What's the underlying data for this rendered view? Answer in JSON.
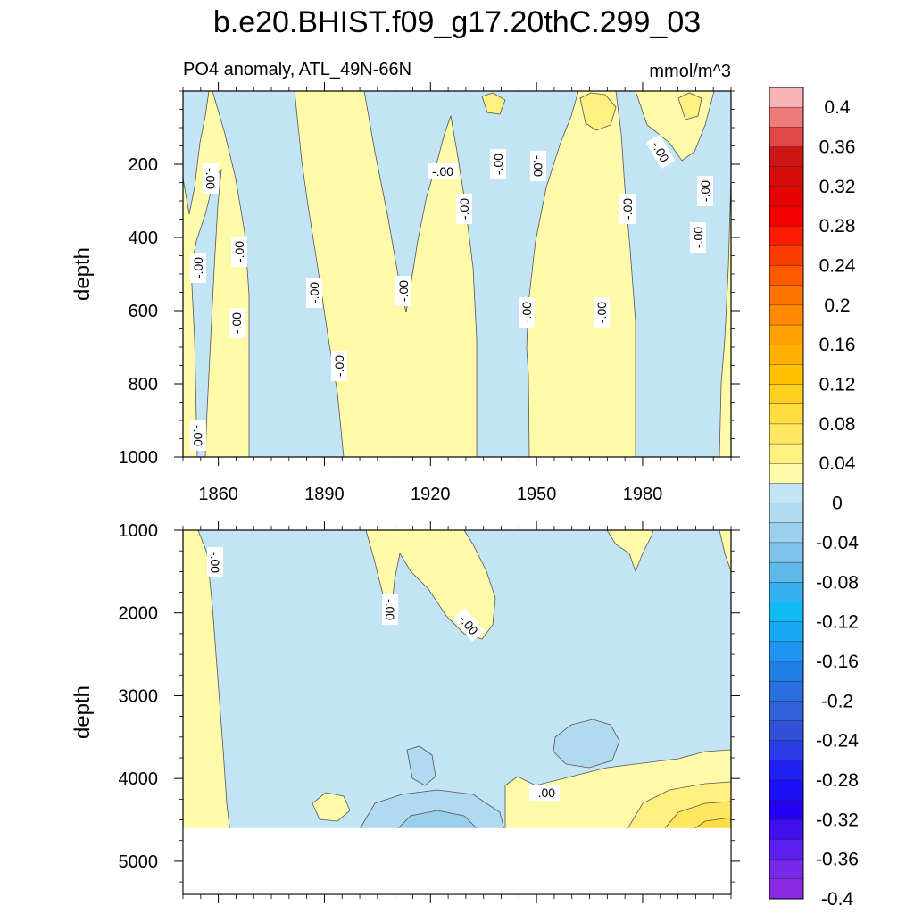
{
  "chart_data": {
    "type": "heatmap",
    "title": "b.e20.BHIST.f09_g17.20thC.299_03",
    "subtitle_left": "PO4 anomaly, ATL_49N-66N",
    "subtitle_right": "mmol/m^3",
    "contour_label": "-.00",
    "x_range": [
      1850,
      2005
    ],
    "x_ticks": [
      "1860",
      "1890",
      "1920",
      "1950",
      "1980"
    ],
    "x_tick_values": [
      1860,
      1890,
      1920,
      1950,
      1980
    ],
    "colorbar": {
      "labels": [
        "0.4",
        "0.36",
        "0.32",
        "0.28",
        "0.24",
        "0.2",
        "0.16",
        "0.12",
        "0.08",
        "0.04",
        "0",
        "-0.04",
        "-0.08",
        "-0.12",
        "-0.16",
        "-0.2",
        "-0.24",
        "-0.28",
        "-0.32",
        "-0.36",
        "-0.4"
      ],
      "colors": [
        "#f7b4b4",
        "#ef7a7a",
        "#e04848",
        "#cf1616",
        "#d60c0c",
        "#e40404",
        "#f40000",
        "#ff1a00",
        "#ff3c00",
        "#ff5a00",
        "#ff7400",
        "#ff8a00",
        "#ffa000",
        "#ffb000",
        "#ffc000",
        "#ffd020",
        "#ffdd40",
        "#ffe860",
        "#fff080",
        "#fffaaa",
        "#c3e4f4",
        "#b0daf0",
        "#9ccfed",
        "#7fc2ea",
        "#5fb8e8",
        "#36b0ef",
        "#10bbf4",
        "#18a8f4",
        "#1c94f0",
        "#1f7ee6",
        "#2a6fe0",
        "#3260d8",
        "#3050d8",
        "#2a3ce8",
        "#2020f0",
        "#1c10f4",
        "#2400f4",
        "#4010f0",
        "#5c1ff0",
        "#7a28e8",
        "#8a2be2"
      ]
    },
    "panels": [
      {
        "name": "upper",
        "ylabel": "depth",
        "y_range": [
          0,
          1000
        ],
        "y_ticks": [
          "200",
          "400",
          "600",
          "800",
          "1000"
        ],
        "y_tick_values": [
          200,
          400,
          600,
          800,
          1000
        ]
      },
      {
        "name": "lower",
        "ylabel": "depth",
        "y_range": [
          1000,
          5400
        ],
        "y_ticks": [
          "1000",
          "2000",
          "3000",
          "4000",
          "5000"
        ],
        "y_tick_values": [
          1000,
          2000,
          3000,
          4000,
          5000
        ],
        "data_bottom_depth": 4600
      }
    ]
  }
}
